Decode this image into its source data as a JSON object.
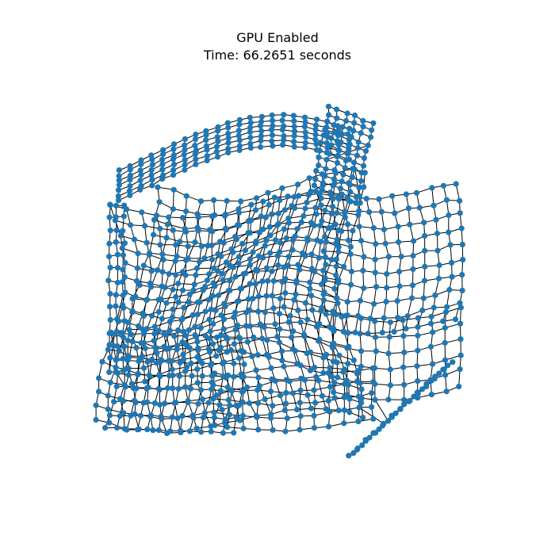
{
  "title_line_1": "GPU Enabled",
  "title_line_2": "Time: 66.2651 seconds",
  "graph": {
    "layout": "grid-mesh network drawing",
    "node_color": "#1f77b4",
    "edge_color": "#000000",
    "background": "#ffffff"
  }
}
